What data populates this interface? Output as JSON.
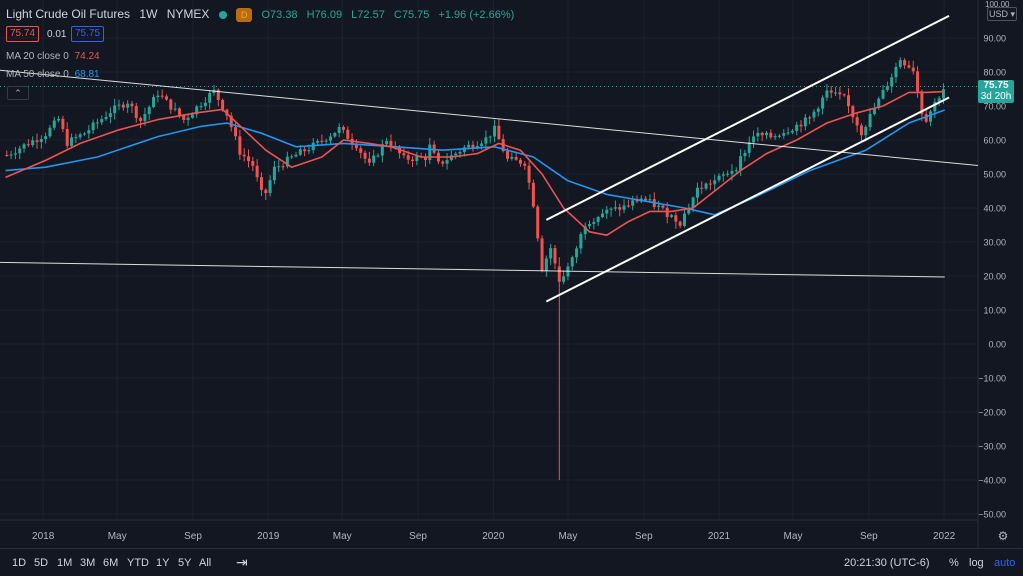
{
  "header": {
    "symbol": "Light Crude Oil Futures",
    "interval": "1W",
    "exchange": "NYMEX",
    "d_badge": "D",
    "open": "O73.38",
    "high": "H76.09",
    "low": "L72.57",
    "close": "C75.75",
    "change": "+1.96 (+2.66%)",
    "bid": "75.74",
    "spread": "0.01",
    "ask": "75.75"
  },
  "indicators": {
    "ma20": {
      "label": "MA 20 close 0",
      "value": "74.24",
      "color": "#ef5350"
    },
    "ma50": {
      "label": "MA 50 close 0",
      "value": "68.81",
      "color": "#2196f3"
    }
  },
  "price_axis": {
    "currency": "USD",
    "top_label": "100.00",
    "last_price": "75.75",
    "countdown": "3d 20h"
  },
  "footer": {
    "ranges": [
      "1D",
      "5D",
      "1M",
      "3M",
      "6M",
      "YTD",
      "1Y",
      "5Y",
      "All"
    ],
    "clock": "20:21:30 (UTC-6)",
    "percent": "%",
    "log": "log",
    "auto": "auto"
  },
  "chart_data": {
    "type": "candlestick",
    "ylim": [
      -50,
      100
    ],
    "yticks": [
      100,
      90,
      80,
      70,
      60,
      50,
      40,
      30,
      20,
      10,
      0,
      -10,
      -20,
      -30,
      -40,
      -50
    ],
    "ytick_labels": [
      "100.00",
      "90.00",
      "80.00",
      "70.00",
      "60.00",
      "50.00",
      "40.00",
      "30.00",
      "20.00",
      "10.00",
      "0.00",
      "−10.00",
      "−20.00",
      "−30.00",
      "−40.00",
      "−50.00"
    ],
    "x_labels": [
      "2018",
      "May",
      "Sep",
      "2019",
      "May",
      "Sep",
      "2020",
      "May",
      "Sep",
      "2021",
      "May",
      "Sep",
      "2022"
    ],
    "x_dates": [
      "2018-01-01",
      "2018-05-01",
      "2018-09-01",
      "2019-01-01",
      "2019-05-01",
      "2019-09-01",
      "2020-01-01",
      "2020-05-01",
      "2020-09-01",
      "2021-01-01",
      "2021-05-01",
      "2021-09-01",
      "2022-01-01"
    ],
    "x_start": "2017-10-23",
    "x_end": "2022-02-25",
    "bull_color": "#26a69a",
    "bear_color": "#ef5350",
    "close_series": [
      [
        "2017-11-03",
        55.6
      ],
      [
        "2017-12-01",
        58.4
      ],
      [
        "2018-01-05",
        61.8
      ],
      [
        "2018-01-26",
        66.1
      ],
      [
        "2018-02-09",
        59.2
      ],
      [
        "2018-03-09",
        62.0
      ],
      [
        "2018-04-20",
        68.4
      ],
      [
        "2018-05-18",
        71.3
      ],
      [
        "2018-06-08",
        65.7
      ],
      [
        "2018-07-06",
        73.8
      ],
      [
        "2018-08-17",
        65.9
      ],
      [
        "2018-09-28",
        73.3
      ],
      [
        "2018-10-05",
        74.3
      ],
      [
        "2018-10-26",
        67.6
      ],
      [
        "2018-11-16",
        56.5
      ],
      [
        "2018-12-07",
        52.6
      ],
      [
        "2018-12-24",
        42.5
      ],
      [
        "2019-01-11",
        51.6
      ],
      [
        "2019-02-15",
        55.6
      ],
      [
        "2019-03-22",
        59.0
      ],
      [
        "2019-04-26",
        63.3
      ],
      [
        "2019-05-24",
        58.6
      ],
      [
        "2019-06-14",
        52.5
      ],
      [
        "2019-07-12",
        60.2
      ],
      [
        "2019-08-09",
        54.5
      ],
      [
        "2019-09-13",
        54.9
      ],
      [
        "2019-09-20",
        58.1
      ],
      [
        "2019-10-04",
        52.8
      ],
      [
        "2019-11-15",
        57.7
      ],
      [
        "2019-12-20",
        60.4
      ],
      [
        "2020-01-03",
        63.1
      ],
      [
        "2020-01-24",
        54.2
      ],
      [
        "2020-02-21",
        53.4
      ],
      [
        "2020-03-06",
        41.3
      ],
      [
        "2020-03-20",
        22.4
      ],
      [
        "2020-04-03",
        28.3
      ],
      [
        "2020-04-17",
        18.3
      ],
      [
        "2020-05-08",
        24.7
      ],
      [
        "2020-05-29",
        35.5
      ],
      [
        "2020-06-26",
        38.5
      ],
      [
        "2020-07-31",
        40.3
      ],
      [
        "2020-08-28",
        42.9
      ],
      [
        "2020-09-25",
        40.2
      ],
      [
        "2020-10-30",
        35.8
      ],
      [
        "2020-11-27",
        45.5
      ],
      [
        "2020-12-31",
        48.5
      ],
      [
        "2021-01-29",
        52.2
      ],
      [
        "2021-02-26",
        61.5
      ],
      [
        "2021-03-26",
        60.9
      ],
      [
        "2021-04-30",
        63.6
      ],
      [
        "2021-05-28",
        66.3
      ],
      [
        "2021-06-25",
        74.1
      ],
      [
        "2021-07-23",
        72.1
      ],
      [
        "2021-08-20",
        62.3
      ],
      [
        "2021-09-24",
        74.0
      ],
      [
        "2021-10-22",
        83.8
      ],
      [
        "2021-11-12",
        80.8
      ],
      [
        "2021-11-26",
        68.2
      ],
      [
        "2021-12-03",
        66.3
      ],
      [
        "2021-12-17",
        70.9
      ],
      [
        "2022-01-02",
        75.75
      ]
    ],
    "ma20_series": [
      [
        "2017-11-01",
        49
      ],
      [
        "2018-01-05",
        54
      ],
      [
        "2018-03-02",
        59
      ],
      [
        "2018-05-04",
        63
      ],
      [
        "2018-07-06",
        66
      ],
      [
        "2018-09-07",
        68
      ],
      [
        "2018-10-19",
        69
      ],
      [
        "2018-11-23",
        63
      ],
      [
        "2018-12-28",
        57
      ],
      [
        "2019-02-08",
        52
      ],
      [
        "2019-03-29",
        55
      ],
      [
        "2019-05-03",
        60
      ],
      [
        "2019-06-14",
        59
      ],
      [
        "2019-07-19",
        58
      ],
      [
        "2019-09-06",
        55
      ],
      [
        "2019-10-25",
        55
      ],
      [
        "2019-12-06",
        56
      ],
      [
        "2020-01-10",
        59
      ],
      [
        "2020-02-14",
        57
      ],
      [
        "2020-03-20",
        50
      ],
      [
        "2020-04-24",
        40
      ],
      [
        "2020-06-05",
        33
      ],
      [
        "2020-07-03",
        32
      ],
      [
        "2020-08-07",
        36
      ],
      [
        "2020-09-11",
        39
      ],
      [
        "2020-10-16",
        39
      ],
      [
        "2020-11-20",
        40
      ],
      [
        "2020-12-25",
        45
      ],
      [
        "2021-02-05",
        51
      ],
      [
        "2021-03-19",
        56
      ],
      [
        "2021-05-07",
        60
      ],
      [
        "2021-06-25",
        65
      ],
      [
        "2021-08-13",
        68
      ],
      [
        "2021-09-24",
        70
      ],
      [
        "2021-11-05",
        74
      ],
      [
        "2021-12-03",
        74
      ],
      [
        "2022-01-02",
        74.24
      ]
    ],
    "ma50_series": [
      [
        "2017-11-01",
        51
      ],
      [
        "2018-01-05",
        52
      ],
      [
        "2018-03-30",
        55
      ],
      [
        "2018-07-06",
        61
      ],
      [
        "2018-09-14",
        64
      ],
      [
        "2018-10-26",
        65
      ],
      [
        "2018-12-21",
        62
      ],
      [
        "2019-02-15",
        58
      ],
      [
        "2019-05-03",
        59
      ],
      [
        "2019-07-26",
        58
      ],
      [
        "2019-10-11",
        57
      ],
      [
        "2020-01-03",
        58
      ],
      [
        "2020-03-06",
        55
      ],
      [
        "2020-05-01",
        48
      ],
      [
        "2020-07-03",
        44
      ],
      [
        "2020-09-04",
        42
      ],
      [
        "2020-11-06",
        40
      ],
      [
        "2020-12-25",
        38
      ],
      [
        "2021-02-26",
        43
      ],
      [
        "2021-05-28",
        51
      ],
      [
        "2021-08-27",
        57
      ],
      [
        "2021-11-05",
        65
      ],
      [
        "2022-01-02",
        68.81
      ]
    ],
    "trendlines": [
      {
        "x1": "2017-10-23",
        "y1": 80.5,
        "x2": "2022-02-25",
        "y2": 52.5
      },
      {
        "x1": "2017-10-23",
        "y1": 24.0,
        "x2": "2022-01-02",
        "y2": 19.7
      },
      {
        "x1": "2020-03-27",
        "y1": 36.5,
        "x2": "2022-01-09",
        "y2": 96.5
      },
      {
        "x1": "2020-03-27",
        "y1": 12.5,
        "x2": "2022-01-09",
        "y2": 72.5
      }
    ]
  }
}
